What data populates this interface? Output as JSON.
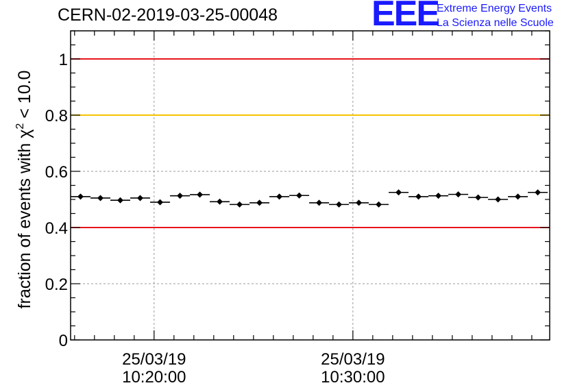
{
  "header": {
    "run_id": "CERN-02-2019-03-25-00048",
    "logo_text": "EEE",
    "logo_line1": "Extreme Energy Events",
    "logo_line2": "La Scienza nelle Scuole"
  },
  "colors": {
    "upper_line": "#e8141c",
    "warning_line": "#f5c400",
    "lower_line": "#e8141c",
    "markers": "#000000",
    "grid": "#9a9a9a"
  },
  "chart_data": {
    "type": "scatter",
    "title": "",
    "ylabel_prefix": "fraction of events with ",
    "ylabel_symbol": "χ",
    "ylabel_superscript": "2",
    "ylabel_suffix": " < 10.0",
    "xlabel": "",
    "ylim": [
      0,
      1.1
    ],
    "yticks": [
      0,
      0.2,
      0.4,
      0.6,
      0.8,
      1
    ],
    "ytick_labels": [
      "0",
      "0.2",
      "0.4",
      "0.6",
      "0.8",
      "1"
    ],
    "x_unit": "minutes after 2019-03-25 10:00:00",
    "xlim": [
      15.8,
      39.9
    ],
    "xticks": [
      20,
      30
    ],
    "xtick_labels": [
      [
        "25/03/19",
        "10:20:00"
      ],
      [
        "25/03/19",
        "10:30:00"
      ]
    ],
    "x_minor_step": 1,
    "grid": true,
    "bin_width_min": 1,
    "x": [
      16.3,
      17.3,
      18.3,
      19.3,
      20.3,
      21.3,
      22.3,
      23.3,
      24.3,
      25.3,
      26.3,
      27.3,
      28.3,
      29.3,
      30.3,
      31.3,
      32.3,
      33.3,
      34.3,
      35.3,
      36.3,
      37.3,
      38.3,
      39.3
    ],
    "y": [
      0.51,
      0.505,
      0.497,
      0.505,
      0.49,
      0.513,
      0.517,
      0.492,
      0.482,
      0.488,
      0.51,
      0.514,
      0.488,
      0.482,
      0.488,
      0.482,
      0.525,
      0.51,
      0.513,
      0.518,
      0.507,
      0.5,
      0.51,
      0.525
    ],
    "error": 0.008,
    "reference_lines": [
      {
        "y": 1.0,
        "color": "#e8141c"
      },
      {
        "y": 0.8,
        "color": "#f5c400"
      },
      {
        "y": 0.4,
        "color": "#e8141c"
      }
    ]
  }
}
